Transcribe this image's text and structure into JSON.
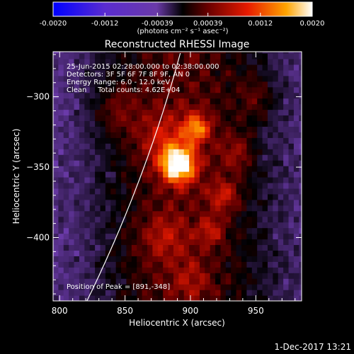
{
  "chart_data": {
    "type": "heatmap",
    "title": "Reconstructed RHESSI Image",
    "xlabel": "Heliocentric X (arcsec)",
    "ylabel": "Heliocentric Y (arcsec)",
    "xlim": [
      795,
      985
    ],
    "ylim": [
      -445,
      -268
    ],
    "x_ticks": [
      800,
      850,
      900,
      950
    ],
    "y_ticks": [
      -300,
      -350,
      -400
    ],
    "colorbar": {
      "range": [
        -0.002,
        0.002
      ],
      "tick_values": [
        -0.002,
        -0.0012,
        -0.00039,
        0.00039,
        0.0012,
        0.002
      ],
      "tick_labels": [
        "-0.0020",
        "-0.0012",
        "-0.00039",
        "0.00039",
        "0.0012",
        "0.0020"
      ],
      "unit_label": "(photons cm⁻² s⁻¹ asec⁻²)"
    },
    "annotations": [
      "25-Jun-2015 02:28:00.000 to 02:38:00.000",
      "Detectors: 3F 5F 6F 7F 8F 9F, AN 0",
      "Energy Range: 6.0 - 12.0 keV",
      "Clean     Total counts: 4.62E+04"
    ],
    "peak_label": "Position of Peak = [891,-348]",
    "peak": {
      "x": 891,
      "y": -348
    },
    "sources": [
      {
        "x": 891,
        "y": -348,
        "sigma": 9,
        "amplitude": 0.0021
      },
      {
        "x": 905,
        "y": -322,
        "sigma": 7,
        "amplitude": 0.0012
      },
      {
        "x": 880,
        "y": -330,
        "sigma": 14,
        "amplitude": 0.0006
      },
      {
        "x": 925,
        "y": -370,
        "sigma": 8,
        "amplitude": 0.0007
      },
      {
        "x": 915,
        "y": -395,
        "sigma": 7,
        "amplitude": 0.0006
      },
      {
        "x": 935,
        "y": -340,
        "sigma": 9,
        "amplitude": 0.0005
      },
      {
        "x": 880,
        "y": -400,
        "sigma": 12,
        "amplitude": 0.0005
      },
      {
        "x": 845,
        "y": -310,
        "sigma": 12,
        "amplitude": 0.0004
      },
      {
        "x": 950,
        "y": -300,
        "sigma": 10,
        "amplitude": 0.00035
      },
      {
        "x": 900,
        "y": -430,
        "sigma": 10,
        "amplitude": 0.0004
      }
    ],
    "colors": {
      "background": "#000000",
      "limb_line": "#ffffff"
    }
  },
  "footer_date": "1-Dec-2017 13:21"
}
